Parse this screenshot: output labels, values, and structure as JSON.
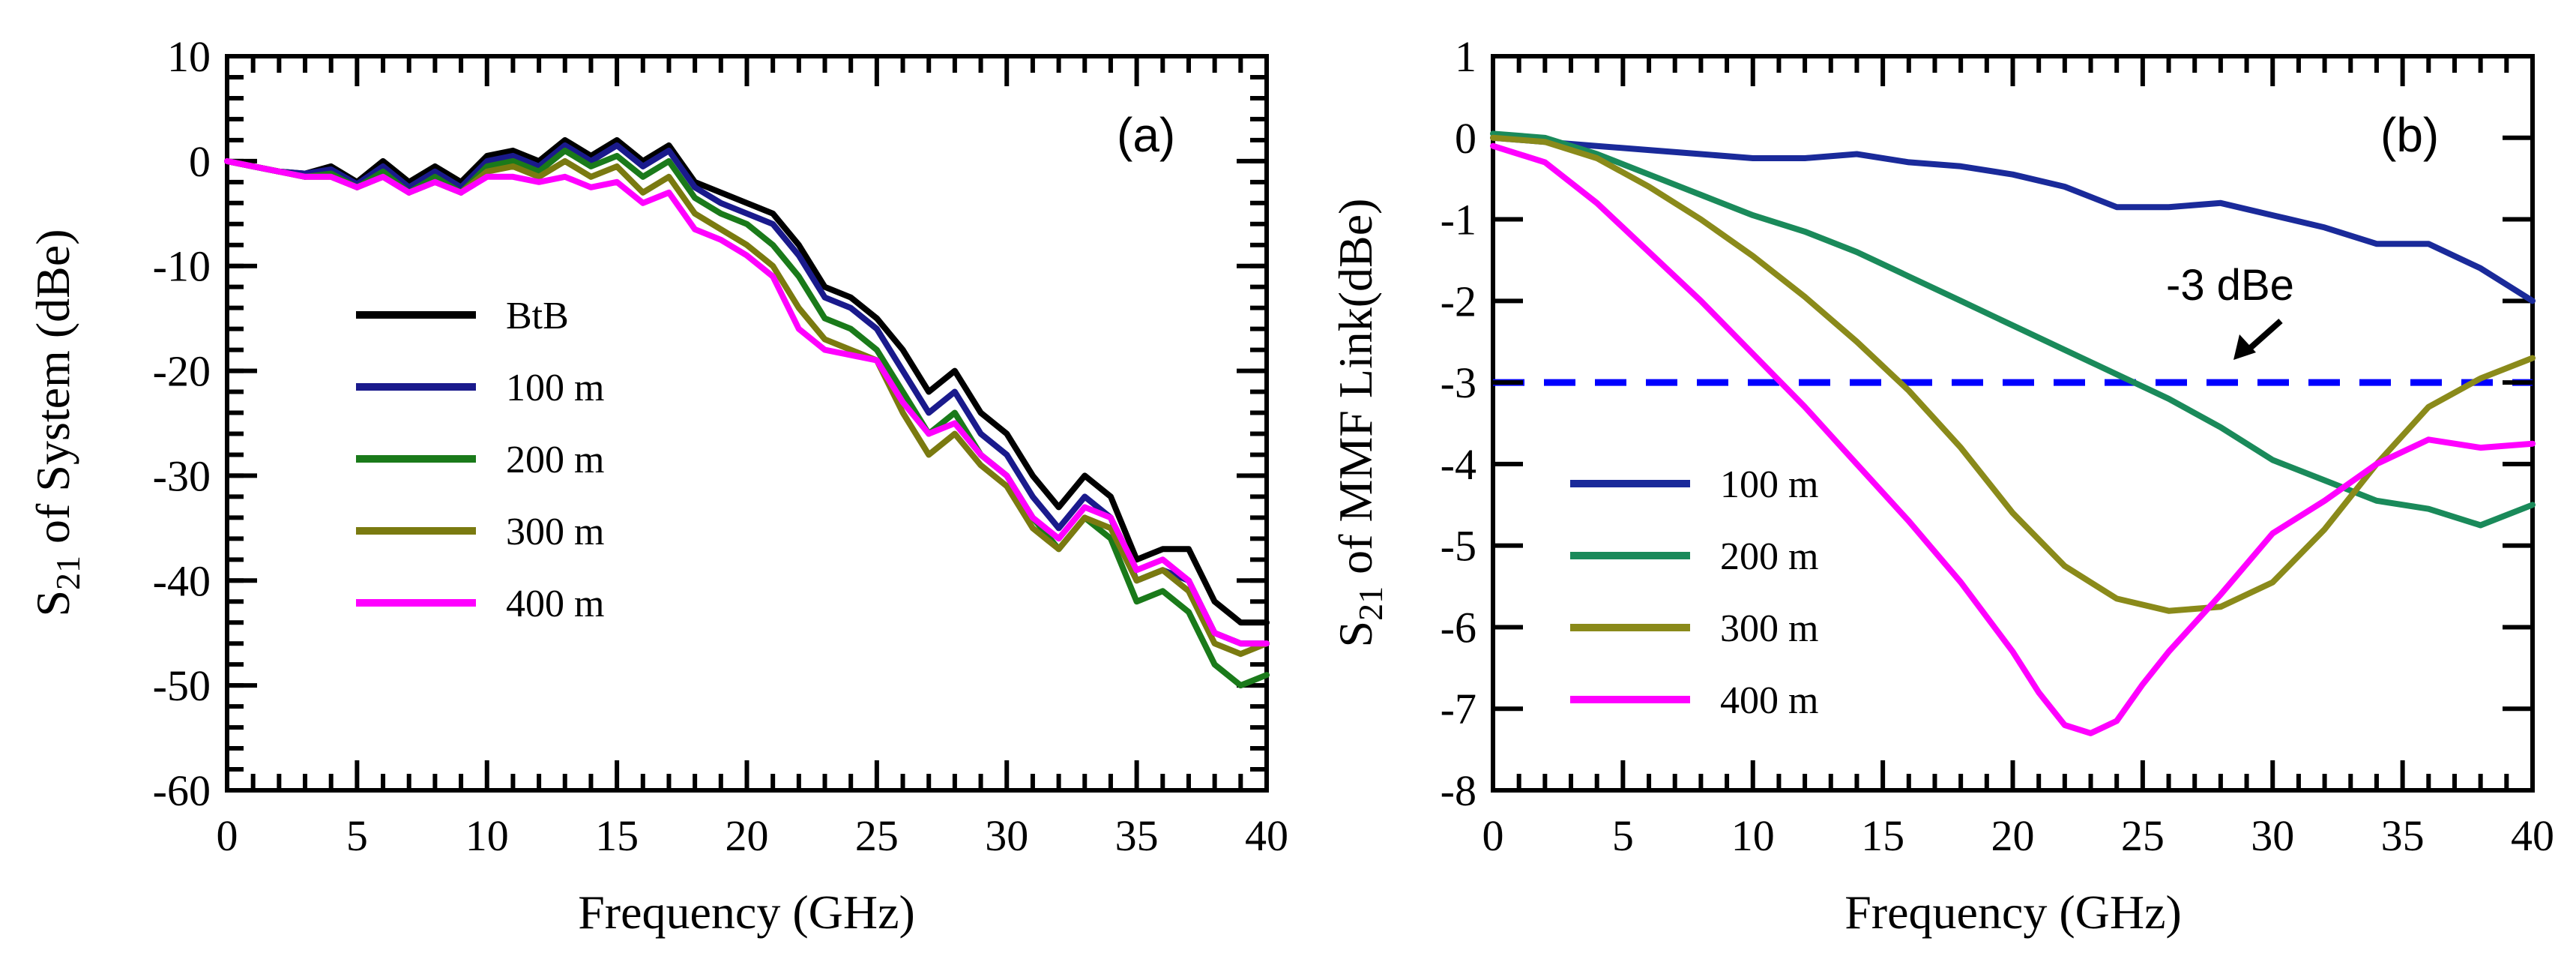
{
  "chart_data": [
    {
      "type": "line",
      "panel_label": "(a)",
      "xlabel": "Frequency (GHz)",
      "ylabel": {
        "prefix": "S",
        "subscript": "21",
        "suffix": " of System (dBe)"
      },
      "xlim": [
        0,
        40
      ],
      "ylim": [
        -60,
        10
      ],
      "xticks": [
        0,
        5,
        10,
        15,
        20,
        25,
        30,
        35,
        40
      ],
      "yticks": [
        10,
        0,
        -10,
        -20,
        -30,
        -40,
        -50,
        -60
      ],
      "grid": false,
      "legend_position": "center-left",
      "series": [
        {
          "name": "BtB",
          "color": "#000000",
          "x": [
            0,
            1,
            2,
            3,
            4,
            5,
            6,
            7,
            8,
            9,
            10,
            11,
            12,
            13,
            14,
            15,
            16,
            17,
            18,
            19,
            20,
            21,
            22,
            23,
            24,
            25,
            26,
            27,
            28,
            29,
            30,
            31,
            32,
            33,
            34,
            35,
            36,
            37,
            38,
            39,
            40
          ],
          "y": [
            0,
            -0.5,
            -1,
            -1.2,
            -0.5,
            -2,
            0,
            -2,
            -0.5,
            -2,
            0.5,
            1,
            0,
            2,
            0.5,
            2,
            0,
            1.5,
            -2,
            -3,
            -4,
            -5,
            -8,
            -12,
            -13,
            -15,
            -18,
            -22,
            -20,
            -24,
            -26,
            -30,
            -33,
            -30,
            -32,
            -38,
            -37,
            -37,
            -42,
            -44,
            -44
          ]
        },
        {
          "name": "100 m",
          "color": "#1a1a8c",
          "x": [
            0,
            1,
            2,
            3,
            4,
            5,
            6,
            7,
            8,
            9,
            10,
            11,
            12,
            13,
            14,
            15,
            16,
            17,
            18,
            19,
            20,
            21,
            22,
            23,
            24,
            25,
            26,
            27,
            28,
            29,
            30,
            31,
            32,
            33,
            34,
            35,
            36,
            37,
            38,
            39,
            40
          ],
          "y": [
            0,
            -0.5,
            -1,
            -1.2,
            -0.8,
            -2.2,
            -0.5,
            -2.5,
            -1,
            -2.5,
            0,
            0.5,
            -0.5,
            1.5,
            0,
            1.5,
            -0.5,
            1,
            -2.5,
            -4,
            -5,
            -6,
            -9,
            -13,
            -14,
            -16,
            -20,
            -24,
            -22,
            -26,
            -28,
            -32,
            -35,
            -32,
            -34,
            -40,
            -39,
            -40,
            -45,
            -46,
            -46
          ]
        },
        {
          "name": "200 m",
          "color": "#1a7a1a",
          "x": [
            0,
            1,
            2,
            3,
            4,
            5,
            6,
            7,
            8,
            9,
            10,
            11,
            12,
            13,
            14,
            15,
            16,
            17,
            18,
            19,
            20,
            21,
            22,
            23,
            24,
            25,
            26,
            27,
            28,
            29,
            30,
            31,
            32,
            33,
            34,
            35,
            36,
            37,
            38,
            39,
            40
          ],
          "y": [
            0,
            -0.5,
            -1,
            -1.5,
            -1.2,
            -2.5,
            -1,
            -3,
            -1.5,
            -3,
            -0.5,
            0,
            -1,
            1,
            -0.5,
            0.5,
            -1.5,
            0,
            -3.5,
            -5,
            -6,
            -8,
            -11,
            -15,
            -16,
            -18,
            -22,
            -26,
            -24,
            -28,
            -30,
            -34,
            -37,
            -34,
            -36,
            -42,
            -41,
            -43,
            -48,
            -50,
            -49
          ]
        },
        {
          "name": "300 m",
          "color": "#7a7a10",
          "x": [
            0,
            1,
            2,
            3,
            4,
            5,
            6,
            7,
            8,
            9,
            10,
            11,
            12,
            13,
            14,
            15,
            16,
            17,
            18,
            19,
            20,
            21,
            22,
            23,
            24,
            25,
            26,
            27,
            28,
            29,
            30,
            31,
            32,
            33,
            34,
            35,
            36,
            37,
            38,
            39,
            40
          ],
          "y": [
            0,
            -0.5,
            -1,
            -1.5,
            -1.5,
            -2.5,
            -1.5,
            -3,
            -2,
            -3,
            -1,
            -0.5,
            -1.5,
            0,
            -1.5,
            -0.5,
            -3,
            -1.5,
            -5,
            -6.5,
            -8,
            -10,
            -14,
            -17,
            -18,
            -19,
            -24,
            -28,
            -26,
            -29,
            -31,
            -35,
            -37,
            -34,
            -35,
            -40,
            -39,
            -41,
            -46,
            -47,
            -46
          ]
        },
        {
          "name": "400 m",
          "color": "#ff00ff",
          "x": [
            0,
            1,
            2,
            3,
            4,
            5,
            6,
            7,
            8,
            9,
            10,
            11,
            12,
            13,
            14,
            15,
            16,
            17,
            18,
            19,
            20,
            21,
            22,
            23,
            24,
            25,
            26,
            27,
            28,
            29,
            30,
            31,
            32,
            33,
            34,
            35,
            36,
            37,
            38,
            39,
            40
          ],
          "y": [
            0,
            -0.5,
            -1,
            -1.5,
            -1.5,
            -2.5,
            -1.5,
            -3,
            -2,
            -3,
            -1.5,
            -1.5,
            -2,
            -1.5,
            -2.5,
            -2,
            -4,
            -3,
            -6.5,
            -7.5,
            -9,
            -11,
            -16,
            -18,
            -18.5,
            -19,
            -23,
            -26,
            -25,
            -28,
            -30,
            -34,
            -36,
            -33,
            -34,
            -39,
            -38,
            -40,
            -45,
            -46,
            -46
          ]
        }
      ]
    },
    {
      "type": "line",
      "panel_label": "(b)",
      "xlabel": "Frequency (GHz)",
      "ylabel": {
        "prefix": "S",
        "subscript": "21",
        "suffix": " of MMF Link(dBe)"
      },
      "xlim": [
        0,
        40
      ],
      "ylim": [
        -8,
        1
      ],
      "xticks": [
        0,
        5,
        10,
        15,
        20,
        25,
        30,
        35,
        40
      ],
      "yticks": [
        1,
        0,
        -1,
        -2,
        -3,
        -4,
        -5,
        -6,
        -7,
        -8
      ],
      "grid": false,
      "legend_position": "lower-left",
      "threshold": {
        "value": -3,
        "label": "-3 dBe",
        "color": "#0000ff",
        "style": "dashed"
      },
      "annotation": {
        "text": "-3 dBe",
        "points_to": [
          28.5,
          -2.7
        ],
        "text_at": [
          28,
          -1.8
        ]
      },
      "series": [
        {
          "name": "100 m",
          "color": "#1a2a9a",
          "x": [
            0,
            2,
            4,
            6,
            8,
            10,
            12,
            14,
            16,
            18,
            20,
            22,
            24,
            26,
            28,
            30,
            32,
            34,
            36,
            38,
            40
          ],
          "y": [
            0,
            -0.05,
            -0.1,
            -0.15,
            -0.2,
            -0.25,
            -0.25,
            -0.2,
            -0.3,
            -0.35,
            -0.45,
            -0.6,
            -0.85,
            -0.85,
            -0.8,
            -0.95,
            -1.1,
            -1.3,
            -1.3,
            -1.6,
            -2.0
          ]
        },
        {
          "name": "200 m",
          "color": "#1a8a5a",
          "x": [
            0,
            2,
            4,
            6,
            8,
            10,
            12,
            14,
            16,
            18,
            20,
            22,
            24,
            26,
            28,
            30,
            32,
            34,
            36,
            38,
            40
          ],
          "y": [
            0.05,
            0,
            -0.2,
            -0.45,
            -0.7,
            -0.95,
            -1.15,
            -1.4,
            -1.7,
            -2.0,
            -2.3,
            -2.6,
            -2.9,
            -3.2,
            -3.55,
            -3.95,
            -4.2,
            -4.45,
            -4.55,
            -4.75,
            -4.5
          ]
        },
        {
          "name": "300 m",
          "color": "#8a8a1a",
          "x": [
            0,
            2,
            4,
            6,
            8,
            10,
            12,
            14,
            16,
            18,
            20,
            22,
            24,
            26,
            28,
            30,
            32,
            34,
            36,
            38,
            40
          ],
          "y": [
            0,
            -0.05,
            -0.25,
            -0.6,
            -1.0,
            -1.45,
            -1.95,
            -2.5,
            -3.1,
            -3.8,
            -4.6,
            -5.25,
            -5.65,
            -5.8,
            -5.75,
            -5.45,
            -4.8,
            -4.0,
            -3.3,
            -2.95,
            -2.7
          ]
        },
        {
          "name": "400 m",
          "color": "#ff00ff",
          "x": [
            0,
            2,
            4,
            6,
            8,
            10,
            12,
            14,
            16,
            18,
            20,
            21,
            22,
            23,
            24,
            25,
            26,
            28,
            30,
            32,
            34,
            36,
            38,
            40
          ],
          "y": [
            -0.1,
            -0.3,
            -0.8,
            -1.4,
            -2.0,
            -2.65,
            -3.3,
            -4.0,
            -4.7,
            -5.45,
            -6.3,
            -6.8,
            -7.2,
            -7.3,
            -7.15,
            -6.7,
            -6.3,
            -5.6,
            -4.85,
            -4.45,
            -4.0,
            -3.7,
            -3.8,
            -3.75
          ]
        }
      ]
    }
  ]
}
